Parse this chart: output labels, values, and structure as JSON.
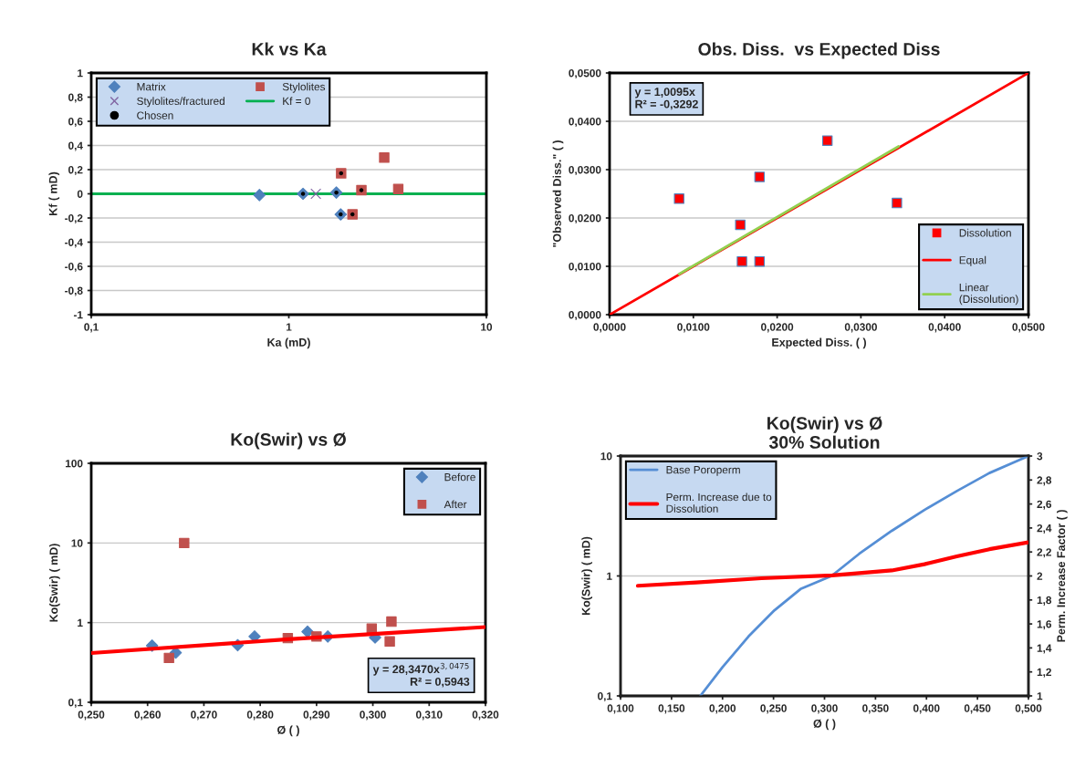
{
  "chart_data": [
    {
      "type": "scatter",
      "title": "Kk vs Ka",
      "xlabel": "Ka (mD)",
      "ylabel": "Kf ( mD)",
      "log": "x",
      "xlim": [
        0.1,
        10
      ],
      "xticks": [
        {
          "value": 0.1,
          "label": "0,1"
        },
        1,
        10
      ],
      "ylim": [
        -1,
        1
      ],
      "yticks": [
        -1,
        {
          "value": -0.8,
          "label": "-0,8"
        },
        {
          "value": -0.6,
          "label": "-0,6"
        },
        {
          "value": -0.4,
          "label": "-0,4"
        },
        {
          "value": -0.2,
          "label": "-0,2"
        },
        0,
        {
          "value": 0.2,
          "label": "0,2"
        },
        {
          "value": 0.4,
          "label": "0,4"
        },
        {
          "value": 0.6,
          "label": "0,6"
        },
        {
          "value": 0.8,
          "label": "0,8"
        },
        1
      ],
      "grid": "y",
      "legend": "top left",
      "series": [
        {
          "name": "Matrix",
          "color": "#4f81bd",
          "marker": "diamond",
          "x": [
            0.71,
            1.18,
            1.74,
            1.83
          ],
          "values": [
            -0.01,
            0,
            0.01,
            -0.17
          ]
        },
        {
          "name": "Stylolites/fractured",
          "color": "#8064a2",
          "marker": "cross",
          "x": [
            1.37
          ],
          "values": [
            0
          ]
        },
        {
          "name": "Chosen",
          "color": "#000000",
          "marker": "circle",
          "x": [
            1.18,
            1.74,
            1.83,
            1.84,
            2.33,
            2.1
          ],
          "values": [
            0,
            0.01,
            -0.17,
            0.17,
            0.03,
            -0.17
          ]
        },
        {
          "name": "Stylolites",
          "color": "#c0504d",
          "marker": "square",
          "x": [
            1.84,
            2.33,
            3.04,
            3.58,
            2.1
          ],
          "values": [
            0.17,
            0.03,
            0.3,
            0.04,
            -0.17
          ]
        }
      ],
      "ref_lines": [
        {
          "axis": "y",
          "value": 0,
          "label": "Kf = 0",
          "color": "#00b050"
        }
      ]
    },
    {
      "type": "scatter",
      "title": "Obs. Diss.  vs Expected Diss",
      "xlabel": "Expected Diss. ( )",
      "ylabel": "\"Observed Diss.\" ( )",
      "xlim": [
        0,
        0.05
      ],
      "xticks": [
        {
          "value": 0,
          "label": "0,0000"
        },
        {
          "value": 0.01,
          "label": "0,0100"
        },
        {
          "value": 0.02,
          "label": "0,0200"
        },
        {
          "value": 0.03,
          "label": "0,0300"
        },
        {
          "value": 0.04,
          "label": "0,0400"
        },
        {
          "value": 0.05,
          "label": "0,0500"
        }
      ],
      "ylim": [
        0,
        0.05
      ],
      "yticks": [
        {
          "value": 0,
          "label": "0,0000"
        },
        {
          "value": 0.01,
          "label": "0,0100"
        },
        {
          "value": 0.02,
          "label": "0,0200"
        },
        {
          "value": 0.03,
          "label": "0,0300"
        },
        {
          "value": 0.04,
          "label": "0,0400"
        },
        {
          "value": 0.05,
          "label": "0,0500"
        }
      ],
      "grid": "y",
      "legend": "bottom right",
      "annotations": [
        "y = 1,0095x\nR² = -0,3292"
      ],
      "series": [
        {
          "name": "Dissolution",
          "color": "#ff0000",
          "marker": "square",
          "x": [
            0.0083,
            0.0156,
            0.0158,
            0.0179,
            0.0179,
            0.026,
            0.0343
          ],
          "values": [
            0.024,
            0.0186,
            0.011,
            0.0285,
            0.011,
            0.036,
            0.0231
          ]
        },
        {
          "name": "Equal",
          "type": "line",
          "color": "#ff0000",
          "x": [
            0,
            0.05
          ],
          "values": [
            0,
            0.05
          ]
        },
        {
          "name": "Linear\n(Dissolution)",
          "type": "line",
          "color": "#92d050",
          "x": [
            0.0083,
            0.0345
          ],
          "values": [
            0.0084,
            0.0348
          ]
        }
      ]
    },
    {
      "type": "scatter",
      "title": "Ko(Swir) vs Ø",
      "xlabel": "Ø ( )",
      "ylabel": "Ko(Swir) ( mD)",
      "log": "y",
      "xlim": [
        0.25,
        0.32
      ],
      "xticks": [
        {
          "value": 0.25,
          "label": "0,250"
        },
        {
          "value": 0.26,
          "label": "0,260"
        },
        {
          "value": 0.27,
          "label": "0,270"
        },
        {
          "value": 0.28,
          "label": "0,280"
        },
        {
          "value": 0.29,
          "label": "0,290"
        },
        {
          "value": 0.3,
          "label": "0,300"
        },
        {
          "value": 0.31,
          "label": "0,310"
        },
        {
          "value": 0.32,
          "label": "0,320"
        }
      ],
      "ylim": [
        0.1,
        100
      ],
      "yticks": [
        {
          "value": 0.1,
          "label": "0,1"
        },
        1,
        10,
        100
      ],
      "grid": "y",
      "legend": "top right",
      "annotations": [
        "y = 28,3470x$^{3,0475}$\nR² = 0,5943"
      ],
      "series": [
        {
          "name": "Before",
          "color": "#4f81bd",
          "marker": "diamond",
          "x": [
            0.2608,
            0.265,
            0.276,
            0.279,
            0.2884,
            0.292,
            0.3004
          ],
          "values": [
            0.515,
            0.42,
            0.52,
            0.67,
            0.77,
            0.67,
            0.65
          ]
        },
        {
          "name": "After",
          "color": "#c0504d",
          "marker": "square",
          "x": [
            0.2638,
            0.2665,
            0.2849,
            0.29,
            0.2998,
            0.303,
            0.3033
          ],
          "values": [
            0.36,
            10,
            0.64,
            0.67,
            0.84,
            0.58,
            1.03
          ]
        },
        {
          "type": "line",
          "color": "#ff0000",
          "x": [
            0.25,
            0.285,
            0.32
          ],
          "values": [
            0.415,
            0.618,
            0.88
          ]
        }
      ]
    },
    {
      "type": "line",
      "title": "Ko(Swir) vs Ø\n30% Solution",
      "xlabel": "Ø ( )",
      "ylabel": "Ko(Swir) ( mD)",
      "y2label": "Perm. Increase Factor ( )",
      "log": "y",
      "xlim": [
        0.1,
        0.5
      ],
      "xticks": [
        {
          "value": 0.1,
          "label": "0,100"
        },
        {
          "value": 0.15,
          "label": "0,150"
        },
        {
          "value": 0.2,
          "label": "0,200"
        },
        {
          "value": 0.25,
          "label": "0,250"
        },
        {
          "value": 0.3,
          "label": "0,300"
        },
        {
          "value": 0.35,
          "label": "0,350"
        },
        {
          "value": 0.4,
          "label": "0,400"
        },
        {
          "value": 0.45,
          "label": "0,450"
        },
        {
          "value": 0.5,
          "label": "0,500"
        }
      ],
      "ylim": [
        0.1,
        10
      ],
      "yticks": [
        {
          "value": 0.1,
          "label": "0,1"
        },
        1,
        10
      ],
      "y2lim": [
        1,
        3
      ],
      "y2ticks": [
        1,
        {
          "value": 1.2,
          "label": "1,2"
        },
        {
          "value": 1.4,
          "label": "1,4"
        },
        {
          "value": 1.6,
          "label": "1,6"
        },
        {
          "value": 1.8,
          "label": "1,8"
        },
        2,
        {
          "value": 2.2,
          "label": "2,2"
        },
        {
          "value": 2.4,
          "label": "2,4"
        },
        {
          "value": 2.6,
          "label": "2,6"
        },
        {
          "value": 2.8,
          "label": "2,8"
        },
        3
      ],
      "grid": "y",
      "legend": "top left",
      "series": [
        {
          "name": "Base Poroperm",
          "color": "#558ed5",
          "x": [
            0.1782,
            0.1999,
            0.2255,
            0.251,
            0.2765,
            0.3069,
            0.334,
            0.366,
            0.398,
            0.4298,
            0.4617,
            0.5
          ],
          "values": [
            0.1,
            0.173,
            0.313,
            0.518,
            0.778,
            1.0,
            1.53,
            2.38,
            3.55,
            5.11,
            7.22,
            10
          ]
        },
        {
          "name": "Perm. Increase due to\nDissolution",
          "color": "#ff0000",
          "axis": "y2",
          "x": [
            0.117,
            0.1744,
            0.2382,
            0.3075,
            0.366,
            0.398,
            0.4298,
            0.4617,
            0.5
          ],
          "values": [
            1.918,
            1.946,
            1.981,
            2.005,
            2.046,
            2.098,
            2.163,
            2.223,
            2.281
          ]
        }
      ]
    }
  ]
}
